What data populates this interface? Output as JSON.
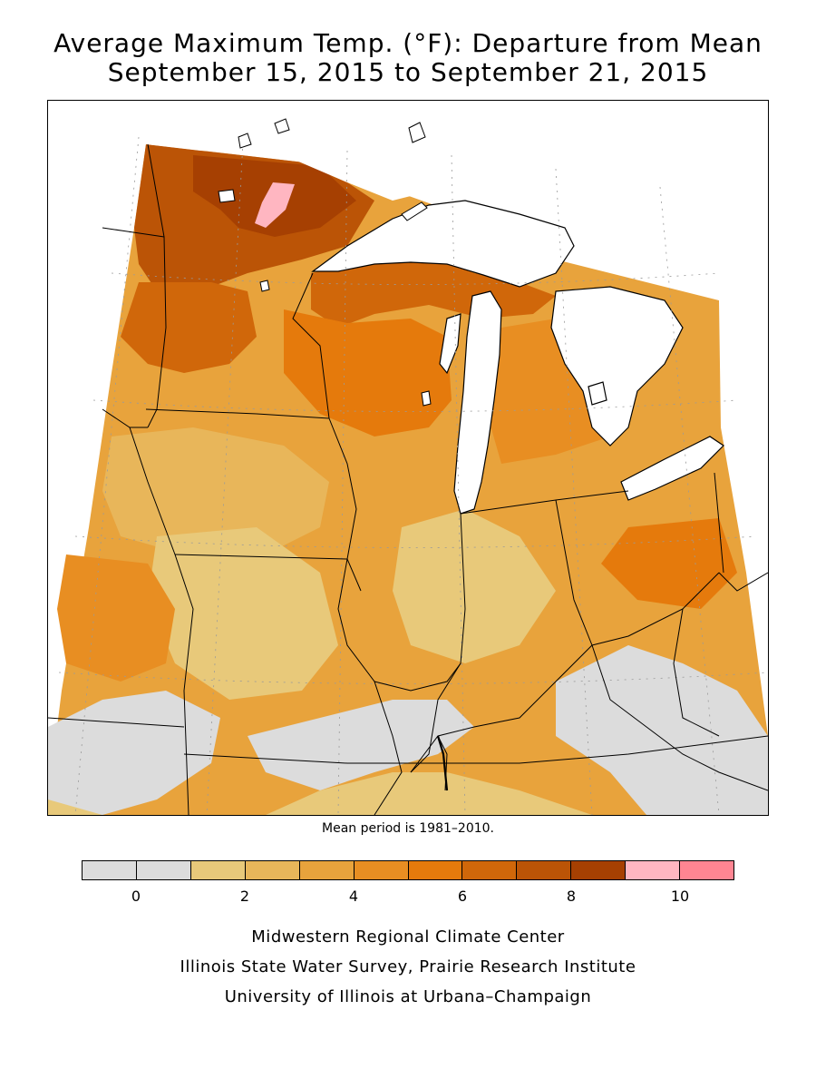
{
  "title": {
    "line1": "Average Maximum Temp. (°F): Departure from Mean",
    "line2": "September 15, 2015 to September 21, 2015"
  },
  "map": {
    "region": "Midwest United States",
    "colors": {
      "water": "#ffffff",
      "outside": "#ffffff",
      "boundary": "#000000",
      "graticule": "#9a9a9a"
    }
  },
  "mean_note": "Mean period is 1981–2010.",
  "legend": {
    "tick_labels": [
      "0",
      "2",
      "4",
      "6",
      "8",
      "10"
    ],
    "tick_values": [
      0,
      2,
      4,
      6,
      8,
      10
    ],
    "bins": [
      {
        "min": -1,
        "max": 0,
        "color": "#dcdcdc"
      },
      {
        "min": 0,
        "max": 1,
        "color": "#dcdcdc"
      },
      {
        "min": 1,
        "max": 2,
        "color": "#e8c97a"
      },
      {
        "min": 2,
        "max": 3,
        "color": "#e8b65a"
      },
      {
        "min": 3,
        "max": 4,
        "color": "#e8a33c"
      },
      {
        "min": 4,
        "max": 5,
        "color": "#e88e22"
      },
      {
        "min": 5,
        "max": 6,
        "color": "#e57a0c"
      },
      {
        "min": 6,
        "max": 7,
        "color": "#d0670a"
      },
      {
        "min": 7,
        "max": 8,
        "color": "#bb5406"
      },
      {
        "min": 8,
        "max": 9,
        "color": "#a64002"
      },
      {
        "min": 9,
        "max": 10,
        "color": "#ffb6c1"
      },
      {
        "min": 10,
        "max": 11,
        "color": "#ff8592"
      }
    ]
  },
  "credits": {
    "line1": "Midwestern Regional Climate Center",
    "line2": "Illinois State Water Survey, Prairie Research Institute",
    "line3": "University of Illinois at Urbana–Champaign"
  }
}
